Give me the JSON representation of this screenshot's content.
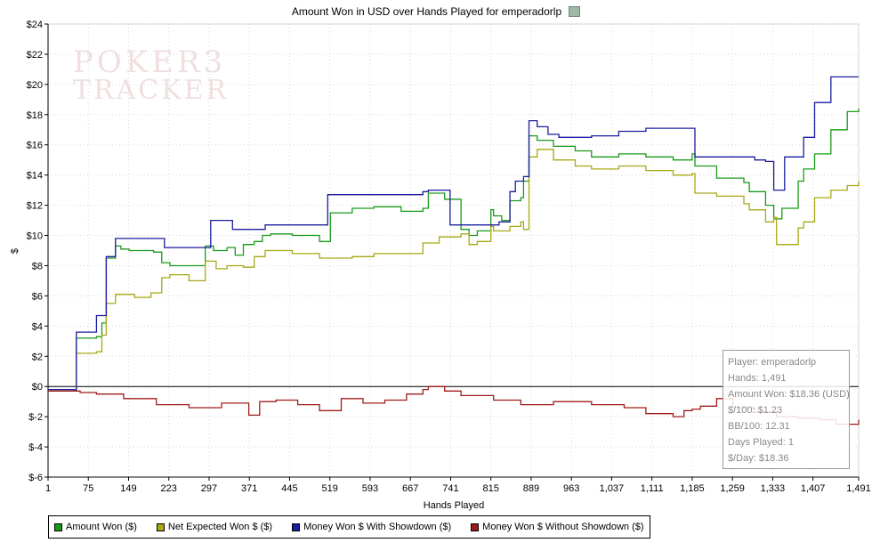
{
  "chart_data": {
    "type": "line",
    "title": "Amount Won in USD over Hands Played for emperadorlp",
    "xlabel": "Hands Played",
    "ylabel": "$",
    "xlim": [
      1,
      1491
    ],
    "ylim": [
      -6,
      24
    ],
    "x_ticks": [
      1,
      75,
      149,
      223,
      297,
      371,
      445,
      519,
      593,
      667,
      741,
      815,
      889,
      963,
      1037,
      1111,
      1185,
      1259,
      1333,
      1407,
      1491
    ],
    "x_tick_labels": [
      "1",
      "75",
      "149",
      "223",
      "297",
      "371",
      "445",
      "519",
      "593",
      "667",
      "741",
      "815",
      "889",
      "963",
      "1,037",
      "1,111",
      "1,185",
      "1,259",
      "1,333",
      "1,407",
      "1,491"
    ],
    "y_ticks": [
      -6,
      -4,
      -2,
      0,
      2,
      4,
      6,
      8,
      10,
      12,
      14,
      16,
      18,
      20,
      22,
      24
    ],
    "y_tick_labels": [
      "$-6",
      "$-4",
      "$-2",
      "$0",
      "$2",
      "$4",
      "$6",
      "$8",
      "$10",
      "$12",
      "$14",
      "$16",
      "$18",
      "$20",
      "$22",
      "$24"
    ],
    "grid": true,
    "legend_position": "bottom-left",
    "series": [
      {
        "name": "Amount Won ($)",
        "color": "#1a9a1a",
        "x": [
          1,
          50,
          53,
          90,
          100,
          108,
          125,
          135,
          150,
          195,
          210,
          225,
          260,
          290,
          305,
          330,
          345,
          360,
          380,
          395,
          410,
          450,
          500,
          520,
          560,
          600,
          650,
          690,
          700,
          730,
          760,
          775,
          790,
          815,
          820,
          835,
          850,
          870,
          875,
          885,
          900,
          930,
          970,
          1000,
          1050,
          1100,
          1150,
          1185,
          1190,
          1230,
          1280,
          1290,
          1320,
          1335,
          1350,
          1380,
          1390,
          1410,
          1440,
          1470,
          1491
        ],
        "y": [
          -0.2,
          -0.3,
          3.2,
          3.3,
          4.2,
          8.5,
          9.3,
          9.1,
          9.0,
          8.9,
          8.2,
          8.0,
          8.0,
          9.3,
          9.0,
          9.2,
          8.7,
          9.4,
          9.6,
          10.0,
          10.1,
          10.0,
          9.6,
          11.5,
          11.8,
          11.9,
          11.6,
          11.8,
          12.8,
          12.4,
          10.4,
          10.0,
          10.3,
          11.7,
          11.3,
          11.0,
          12.3,
          12.5,
          13.6,
          16.6,
          16.3,
          15.9,
          15.6,
          15.2,
          15.4,
          15.2,
          15.0,
          15.4,
          14.6,
          13.8,
          13.5,
          12.9,
          12.0,
          11.1,
          11.8,
          13.6,
          14.4,
          15.4,
          17.0,
          18.2,
          18.4
        ]
      },
      {
        "name": "Net Expected Won $ ($)",
        "color": "#a8a814",
        "x": [
          1,
          50,
          53,
          90,
          100,
          108,
          125,
          160,
          190,
          210,
          225,
          260,
          290,
          310,
          330,
          360,
          380,
          400,
          450,
          500,
          520,
          560,
          600,
          650,
          690,
          720,
          760,
          775,
          790,
          815,
          820,
          850,
          870,
          875,
          885,
          900,
          930,
          970,
          1000,
          1050,
          1100,
          1150,
          1185,
          1190,
          1230,
          1280,
          1290,
          1320,
          1335,
          1340,
          1380,
          1390,
          1410,
          1440,
          1470,
          1491
        ],
        "y": [
          -0.2,
          -0.3,
          2.2,
          2.3,
          3.4,
          5.5,
          6.1,
          5.9,
          6.2,
          7.2,
          7.4,
          7.0,
          8.3,
          7.8,
          8.0,
          7.9,
          8.6,
          9.0,
          8.8,
          8.5,
          8.5,
          8.6,
          8.8,
          8.8,
          9.5,
          9.9,
          10.1,
          9.4,
          9.6,
          10.6,
          10.3,
          10.6,
          10.9,
          10.4,
          15.2,
          15.7,
          15.0,
          14.6,
          14.4,
          14.6,
          14.3,
          14.0,
          14.1,
          12.8,
          12.6,
          12.1,
          11.7,
          10.9,
          11.2,
          9.4,
          10.5,
          10.9,
          12.5,
          13.0,
          13.3,
          13.6
        ]
      },
      {
        "name": "Money Won $ With Showdown ($)",
        "color": "#1c1ca0",
        "x": [
          1,
          50,
          53,
          90,
          108,
          125,
          210,
          215,
          290,
          300,
          340,
          400,
          510,
          515,
          600,
          690,
          700,
          740,
          760,
          820,
          830,
          850,
          860,
          875,
          885,
          900,
          920,
          940,
          1000,
          1050,
          1100,
          1150,
          1185,
          1190,
          1260,
          1300,
          1320,
          1335,
          1355,
          1390,
          1410,
          1440,
          1491
        ],
        "y": [
          -0.2,
          -0.3,
          3.6,
          4.7,
          8.6,
          9.8,
          9.8,
          9.2,
          9.2,
          11.0,
          10.4,
          10.7,
          10.7,
          12.7,
          12.7,
          12.9,
          13.0,
          10.7,
          10.7,
          10.7,
          10.9,
          12.9,
          13.6,
          13.9,
          17.6,
          17.2,
          16.7,
          16.5,
          16.6,
          16.9,
          17.1,
          17.1,
          17.1,
          15.2,
          15.2,
          15.0,
          14.9,
          13.0,
          15.2,
          16.5,
          18.8,
          20.5,
          20.5
        ]
      },
      {
        "name": "Money Won $ Without Showdown ($)",
        "color": "#a01c1c",
        "x": [
          1,
          60,
          90,
          140,
          200,
          260,
          320,
          370,
          390,
          420,
          460,
          500,
          540,
          580,
          620,
          660,
          690,
          700,
          730,
          760,
          820,
          870,
          930,
          1000,
          1060,
          1100,
          1150,
          1170,
          1185,
          1200,
          1230,
          1260,
          1300,
          1340,
          1380,
          1420,
          1450,
          1491
        ],
        "y": [
          -0.3,
          -0.4,
          -0.5,
          -0.8,
          -1.2,
          -1.4,
          -1.1,
          -1.9,
          -1.0,
          -0.9,
          -1.2,
          -1.6,
          -0.8,
          -1.1,
          -0.9,
          -0.5,
          -0.2,
          0.0,
          -0.3,
          -0.6,
          -0.9,
          -1.2,
          -1.0,
          -1.2,
          -1.4,
          -1.8,
          -2.0,
          -1.6,
          -1.5,
          -1.3,
          -0.8,
          -1.4,
          -1.7,
          -2.0,
          -2.1,
          -2.2,
          -2.5,
          -2.2
        ]
      }
    ]
  },
  "tooltip": {
    "player": "Player: emperadorlp",
    "hands": "Hands: 1,491",
    "amount_won": "Amount Won: $18.36 (USD)",
    "per100": "$/100: $1.23",
    "bb100": "BB/100: 12.31",
    "days_played": "Days Played: 1",
    "per_day": "$/Day: $18.36"
  },
  "watermark": {
    "line1": "POKER3",
    "line2": "TRACKER"
  },
  "title_icon": "chart-icon"
}
